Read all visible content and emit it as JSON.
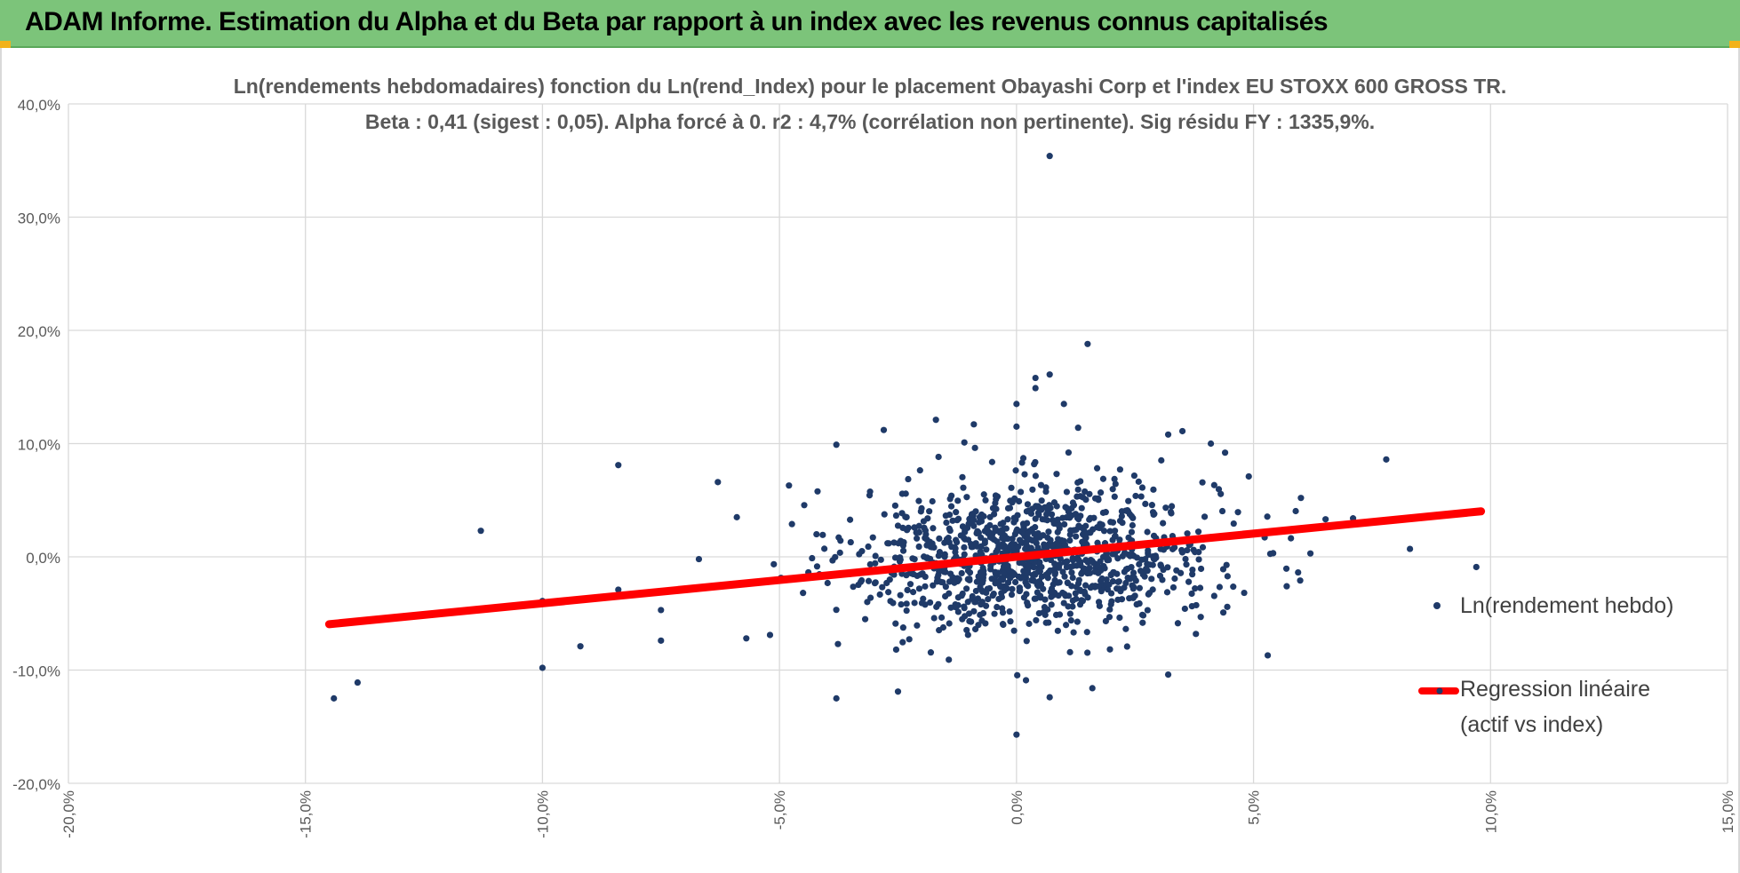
{
  "header": {
    "title": "ADAM Informe. Estimation du Alpha et du Beta par rapport à un index avec les revenus connus capitalisés"
  },
  "colors": {
    "banner": "#7cc47a",
    "points": "#1f3a68",
    "regression": "#ff0000",
    "grid": "#d9d9d9",
    "text": "#595959",
    "corner_accent": "#f2b21b"
  },
  "chart_data": {
    "type": "scatter",
    "title": "Ln(rendements hebdomadaires) fonction du Ln(rend_Index) pour le placement Obayashi Corp et l'index EU STOXX 600 GROSS TR.",
    "subtitle": "Beta : 0,41 (sigest : 0,05). Alpha forcé à 0. r2 : 4,7% (corrélation non pertinente). Sig résidu FY : 1335,9%.",
    "xlim": [
      -0.2,
      0.15
    ],
    "ylim": [
      -0.2,
      0.4
    ],
    "x_ticks": [
      "-20,0%",
      "-15,0%",
      "-10,0%",
      "-5,0%",
      "0,0%",
      "5,0%",
      "10,0%",
      "15,0%"
    ],
    "x_tick_values": [
      -0.2,
      -0.15,
      -0.1,
      -0.05,
      0.0,
      0.05,
      0.1,
      0.15
    ],
    "y_ticks": [
      "40,0%",
      "30,0%",
      "20,0%",
      "10,0%",
      "0,0%",
      "-10,0%",
      "-20,0%"
    ],
    "y_tick_values": [
      0.4,
      0.3,
      0.2,
      0.1,
      0.0,
      -0.1,
      -0.2
    ],
    "grid": true,
    "legend_position": "right",
    "series": [
      {
        "name": "Ln(rendement hebdo)",
        "kind": "scatter",
        "points": [
          [
            0.007,
            0.354
          ],
          [
            0.015,
            0.188
          ],
          [
            0.007,
            0.161
          ],
          [
            0.004,
            0.158
          ],
          [
            0.004,
            0.149
          ],
          [
            -0.017,
            0.121
          ],
          [
            0.0,
            0.135
          ],
          [
            -0.009,
            0.117
          ],
          [
            0.01,
            0.135
          ],
          [
            -0.028,
            0.112
          ],
          [
            -0.0,
            0.115
          ],
          [
            0.013,
            0.114
          ],
          [
            0.032,
            0.108
          ],
          [
            0.035,
            0.111
          ],
          [
            -0.011,
            0.101
          ],
          [
            -0.038,
            0.099
          ],
          [
            -0.084,
            0.081
          ],
          [
            0.078,
            0.086
          ],
          [
            0.044,
            0.092
          ],
          [
            0.041,
            0.1
          ],
          [
            -0.113,
            0.023
          ],
          [
            -0.144,
            -0.125
          ],
          [
            -0.139,
            -0.111
          ],
          [
            -0.1,
            -0.098
          ],
          [
            -0.1,
            -0.039
          ],
          [
            -0.092,
            -0.079
          ],
          [
            -0.084,
            -0.029
          ],
          [
            -0.075,
            -0.074
          ],
          [
            -0.038,
            -0.125
          ],
          [
            -0.025,
            -0.119
          ],
          [
            -0.0,
            -0.157
          ],
          [
            0.002,
            -0.109
          ],
          [
            0.007,
            -0.124
          ],
          [
            0.016,
            -0.116
          ],
          [
            0.032,
            -0.104
          ],
          [
            0.053,
            -0.087
          ],
          [
            0.097,
            -0.009
          ],
          [
            0.083,
            0.007
          ],
          [
            0.071,
            0.034
          ],
          [
            0.062,
            0.003
          ],
          [
            0.057,
            -0.026
          ],
          [
            0.049,
            0.071
          ],
          [
            0.06,
            0.052
          ],
          [
            -0.063,
            0.066
          ],
          [
            -0.048,
            0.063
          ],
          [
            -0.059,
            0.035
          ],
          [
            -0.067,
            -0.002
          ],
          [
            -0.075,
            -0.047
          ],
          [
            -0.057,
            -0.072
          ],
          [
            -0.052,
            -0.069
          ]
        ]
      },
      {
        "name": "Regression linéaire (actif vs index)",
        "kind": "line",
        "points": [
          [
            -0.145,
            -0.0595
          ],
          [
            0.098,
            0.0402
          ]
        ]
      }
    ],
    "cluster_sample": {
      "count": 1100,
      "x_mean": 0.004,
      "x_sd": 0.019,
      "y_mean": 0.001,
      "y_sd": 0.032
    }
  },
  "legend": {
    "scatter_label": "Ln(rendement hebdo)",
    "line_label_1": "Regression linéaire",
    "line_label_2": "(actif vs index)"
  }
}
